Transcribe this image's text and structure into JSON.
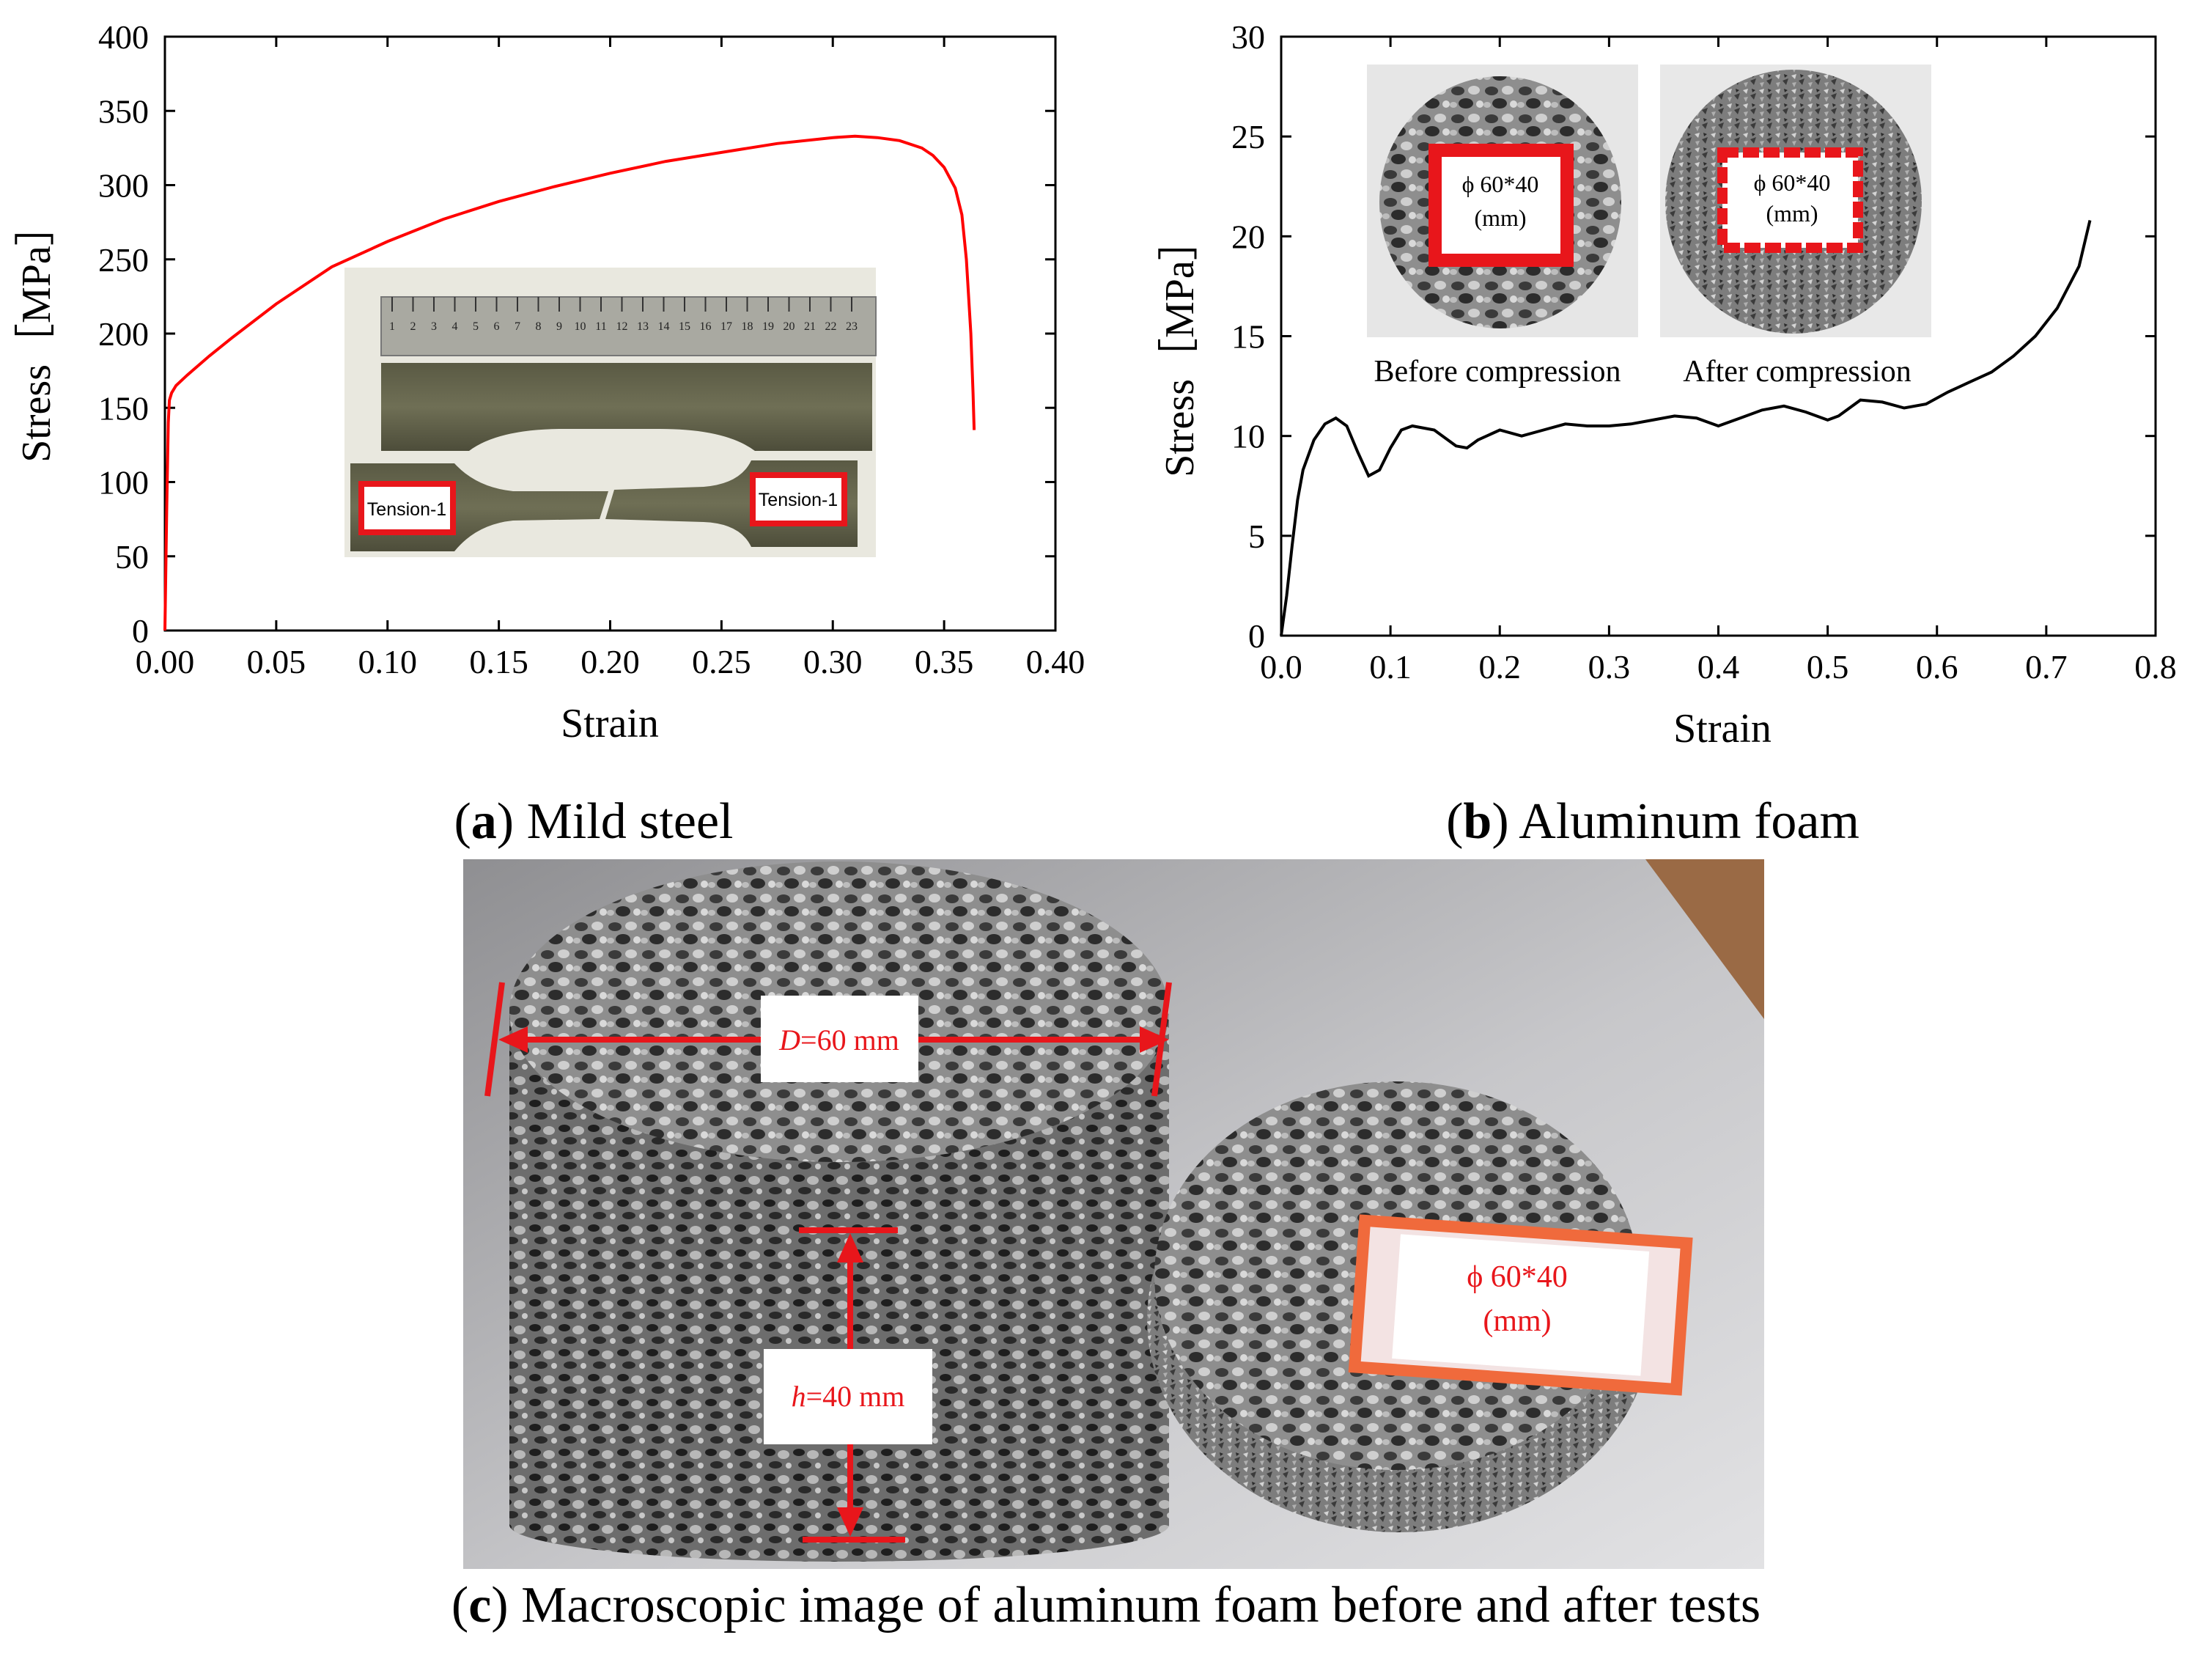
{
  "panels": {
    "a_caption": {
      "letter": "a",
      "text": " Mild steel"
    },
    "b_caption": {
      "letter": "b",
      "text": " Aluminum foam"
    },
    "c_caption": {
      "letter": "c",
      "text": " Macroscopic image of aluminum foam before and after tests"
    }
  },
  "photos": {
    "a_inset": {
      "label_left": "Tension-1",
      "label_right": "Tension-1",
      "ruler_ticks": [
        "1",
        "2",
        "3",
        "4",
        "5",
        "6",
        "7",
        "8",
        "9",
        "10",
        "11",
        "12",
        "13",
        "14",
        "15",
        "16",
        "17",
        "18",
        "19",
        "20",
        "21",
        "22",
        "23"
      ]
    },
    "b_inset": {
      "before_label_1": "ϕ 60*40",
      "before_label_2": "(mm)",
      "after_label_1": "ϕ 60*40",
      "after_label_2": "(mm)",
      "before_caption": "Before compression",
      "after_caption": "After compression"
    },
    "c_photo": {
      "diameter_label_italic": "D",
      "diameter_label_rest": "=60 mm",
      "height_label_italic": "h",
      "height_label_rest": "=40 mm",
      "specimen_label_1": "ϕ 60*40",
      "specimen_label_2": "(mm)"
    }
  },
  "colors": {
    "steel_curve": "#ff0000",
    "foam_curve": "#000000",
    "annotation_red": "#e8161b"
  },
  "chart_data": [
    {
      "id": "a",
      "type": "line",
      "xlabel": "Strain",
      "ylabel": "Stress［MPa］",
      "xlim": [
        0,
        0.4
      ],
      "ylim": [
        0,
        400
      ],
      "xticks": [
        "0.00",
        "0.05",
        "0.10",
        "0.15",
        "0.20",
        "0.25",
        "0.30",
        "0.35",
        "0.40"
      ],
      "yticks": [
        "0",
        "50",
        "100",
        "150",
        "200",
        "250",
        "300",
        "350",
        "400"
      ],
      "grid": false,
      "series": [
        {
          "color": "#ff0000",
          "x": [
            0,
            0.0008,
            0.0015,
            0.002,
            0.003,
            0.005,
            0.01,
            0.02,
            0.03,
            0.05,
            0.075,
            0.1,
            0.125,
            0.15,
            0.175,
            0.2,
            0.225,
            0.25,
            0.275,
            0.3,
            0.31,
            0.32,
            0.33,
            0.34,
            0.345,
            0.35,
            0.355,
            0.358,
            0.36,
            0.362,
            0.363,
            0.3635
          ],
          "y": [
            0,
            80,
            140,
            155,
            160,
            165,
            172,
            185,
            197,
            220,
            245,
            262,
            277,
            289,
            299,
            308,
            316,
            322,
            328,
            332,
            333,
            332,
            330,
            325,
            320,
            312,
            298,
            280,
            250,
            200,
            160,
            135
          ]
        }
      ]
    },
    {
      "id": "b",
      "type": "line",
      "xlabel": "Strain",
      "ylabel": "Stress［MPa］",
      "xlim": [
        0,
        0.8
      ],
      "ylim": [
        0,
        30
      ],
      "xticks": [
        "0.0",
        "0.1",
        "0.2",
        "0.3",
        "0.4",
        "0.5",
        "0.6",
        "0.7",
        "0.8"
      ],
      "yticks": [
        "0",
        "5",
        "10",
        "15",
        "20",
        "25",
        "30"
      ],
      "grid": false,
      "series": [
        {
          "color": "#000000",
          "x": [
            0,
            0.005,
            0.01,
            0.015,
            0.02,
            0.03,
            0.04,
            0.05,
            0.06,
            0.07,
            0.08,
            0.09,
            0.1,
            0.11,
            0.12,
            0.14,
            0.16,
            0.17,
            0.18,
            0.2,
            0.22,
            0.24,
            0.26,
            0.28,
            0.3,
            0.32,
            0.34,
            0.36,
            0.38,
            0.4,
            0.42,
            0.44,
            0.46,
            0.48,
            0.5,
            0.51,
            0.53,
            0.55,
            0.57,
            0.59,
            0.61,
            0.63,
            0.65,
            0.67,
            0.69,
            0.71,
            0.73,
            0.74
          ],
          "y": [
            0,
            2.0,
            4.5,
            6.8,
            8.3,
            9.8,
            10.6,
            10.9,
            10.5,
            9.2,
            8.0,
            8.3,
            9.4,
            10.3,
            10.5,
            10.3,
            9.5,
            9.4,
            9.8,
            10.3,
            10.0,
            10.3,
            10.6,
            10.5,
            10.5,
            10.6,
            10.8,
            11.0,
            10.9,
            10.5,
            10.9,
            11.3,
            11.5,
            11.2,
            10.8,
            11.0,
            11.8,
            11.7,
            11.4,
            11.6,
            12.2,
            12.7,
            13.2,
            14.0,
            15.0,
            16.4,
            18.5,
            20.8
          ]
        }
      ]
    }
  ]
}
